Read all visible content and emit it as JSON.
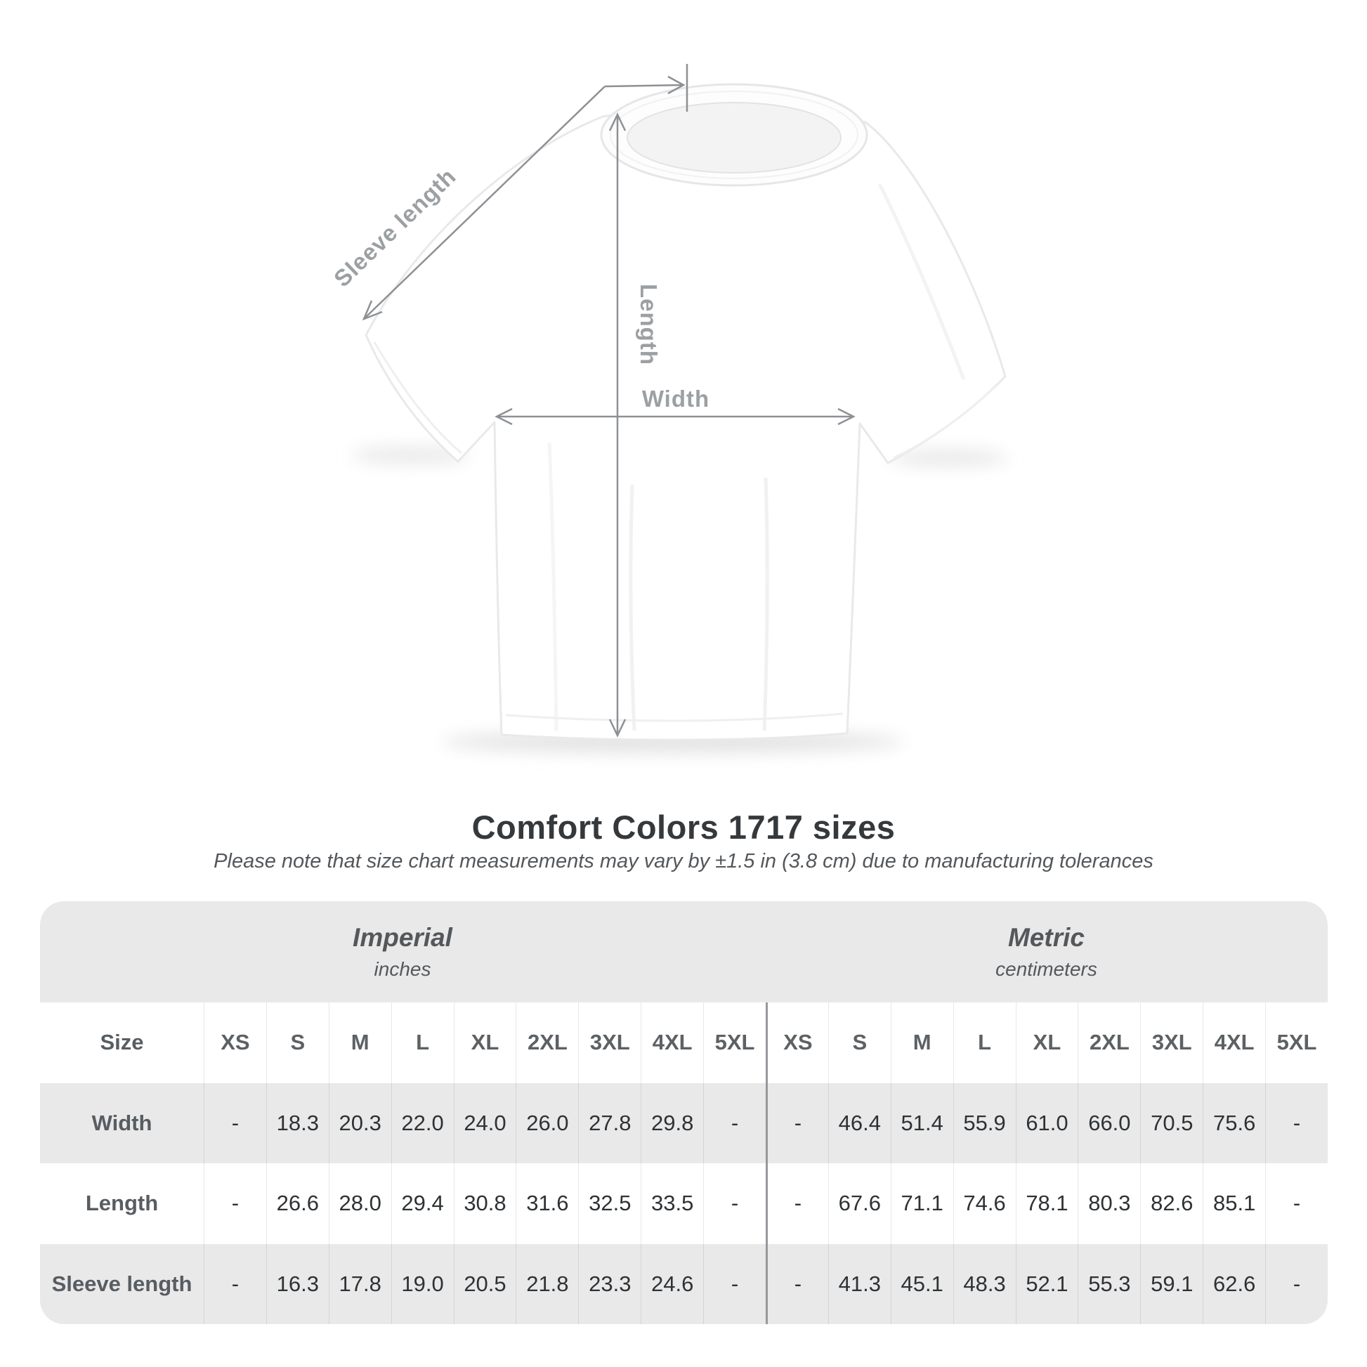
{
  "diagram": {
    "sleeve_label": "Sleeve length",
    "length_label": "Length",
    "width_label": "Width"
  },
  "heading": {
    "title": "Comfort Colors 1717 sizes",
    "subtitle": "Please note that size chart measurements may vary by ±1.5 in (3.8 cm) due to manufacturing tolerances"
  },
  "table": {
    "size_label": "Size",
    "unit_groups": [
      {
        "name": "Imperial",
        "unit": "inches"
      },
      {
        "name": "Metric",
        "unit": "centimeters"
      }
    ],
    "sizes": [
      "XS",
      "S",
      "M",
      "L",
      "XL",
      "2XL",
      "3XL",
      "4XL",
      "5XL"
    ],
    "rows": [
      {
        "label": "Width",
        "imperial": [
          "-",
          "18.3",
          "20.3",
          "22.0",
          "24.0",
          "26.0",
          "27.8",
          "29.8",
          "-"
        ],
        "metric": [
          "-",
          "46.4",
          "51.4",
          "55.9",
          "61.0",
          "66.0",
          "70.5",
          "75.6",
          "-"
        ]
      },
      {
        "label": "Length",
        "imperial": [
          "-",
          "26.6",
          "28.0",
          "29.4",
          "30.8",
          "31.6",
          "32.5",
          "33.5",
          "-"
        ],
        "metric": [
          "-",
          "67.6",
          "71.1",
          "74.6",
          "78.1",
          "80.3",
          "82.6",
          "85.1",
          "-"
        ]
      },
      {
        "label": "Sleeve length",
        "imperial": [
          "-",
          "16.3",
          "17.8",
          "19.0",
          "20.5",
          "21.8",
          "23.3",
          "24.6",
          "-"
        ],
        "metric": [
          "-",
          "41.3",
          "45.1",
          "48.3",
          "52.1",
          "55.3",
          "59.1",
          "62.6",
          "-"
        ]
      }
    ]
  },
  "chart_data": {
    "type": "table",
    "title": "Comfort Colors 1717 sizes",
    "columns": [
      "XS",
      "S",
      "M",
      "L",
      "XL",
      "2XL",
      "3XL",
      "4XL",
      "5XL"
    ],
    "series": [
      {
        "name": "Width (inches)",
        "values": [
          null,
          18.3,
          20.3,
          22.0,
          24.0,
          26.0,
          27.8,
          29.8,
          null
        ]
      },
      {
        "name": "Length (inches)",
        "values": [
          null,
          26.6,
          28.0,
          29.4,
          30.8,
          31.6,
          32.5,
          33.5,
          null
        ]
      },
      {
        "name": "Sleeve length (inches)",
        "values": [
          null,
          16.3,
          17.8,
          19.0,
          20.5,
          21.8,
          23.3,
          24.6,
          null
        ]
      },
      {
        "name": "Width (cm)",
        "values": [
          null,
          46.4,
          51.4,
          55.9,
          61.0,
          66.0,
          70.5,
          75.6,
          null
        ]
      },
      {
        "name": "Length (cm)",
        "values": [
          null,
          67.6,
          71.1,
          74.6,
          78.1,
          80.3,
          82.6,
          85.1,
          null
        ]
      },
      {
        "name": "Sleeve length (cm)",
        "values": [
          null,
          41.3,
          45.1,
          48.3,
          52.1,
          55.3,
          59.1,
          62.6,
          null
        ]
      }
    ]
  },
  "colors": {
    "table_bg": "#e9e9ea",
    "row_white": "#ffffff",
    "thick_divider": "#96999c",
    "measure_line": "#8d9094",
    "measure_label": "#9ba0a3",
    "title_text": "#35393c",
    "value_text": "#2e3235"
  }
}
